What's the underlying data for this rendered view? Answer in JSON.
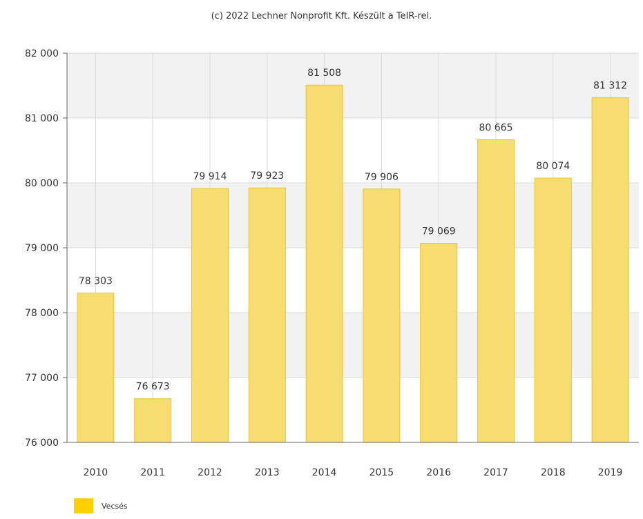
{
  "credit": "(c) 2022 Lechner Nonprofit Kft. Készült a TeIR-rel.",
  "legend": {
    "label": "Vecsés"
  },
  "colors": {
    "bar_fill": "#f7dc6f",
    "bar_stroke": "#e9c237",
    "legend_swatch": "#ffd000",
    "band": "#f2f2f2",
    "grid": "#d9d9d9",
    "axis": "#666666"
  },
  "chart_data": {
    "type": "bar",
    "categories": [
      "2010",
      "2011",
      "2012",
      "2013",
      "2014",
      "2015",
      "2016",
      "2017",
      "2018",
      "2019"
    ],
    "series": [
      {
        "name": "Vecsés",
        "values": [
          78303,
          76673,
          79914,
          79923,
          81508,
          79906,
          79069,
          80665,
          80074,
          81312
        ]
      }
    ],
    "data_labels": [
      "78 303",
      "76 673",
      "79 914",
      "79 923",
      "81 508",
      "79 906",
      "79 069",
      "80 665",
      "80 074",
      "81 312"
    ],
    "yticks": [
      76000,
      77000,
      78000,
      79000,
      80000,
      81000,
      82000
    ],
    "ytick_labels": [
      "76 000",
      "77 000",
      "78 000",
      "79 000",
      "80 000",
      "81 000",
      "82 000"
    ],
    "ylim": [
      76000,
      82000
    ],
    "title": "",
    "xlabel": "",
    "ylabel": "",
    "grid": true,
    "legend_position": "bottom-left"
  }
}
